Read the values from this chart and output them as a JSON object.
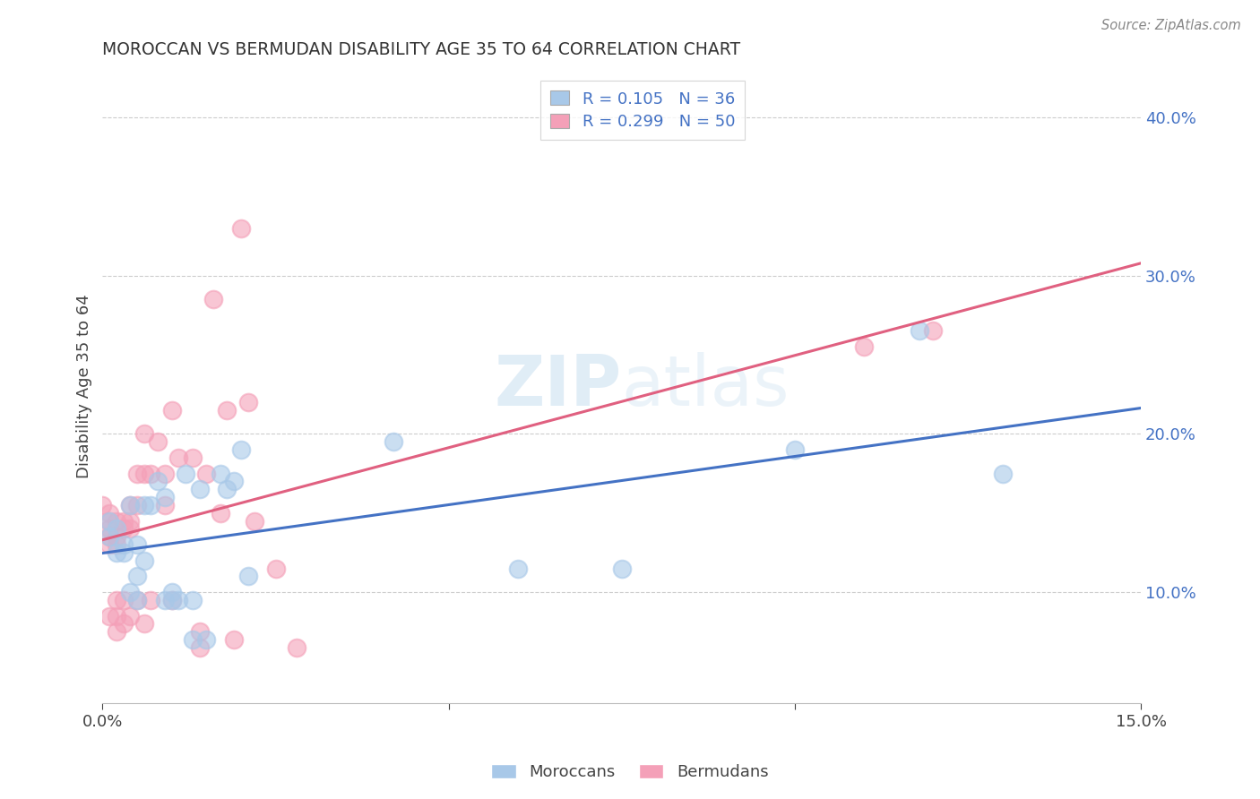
{
  "title": "MOROCCAN VS BERMUDAN DISABILITY AGE 35 TO 64 CORRELATION CHART",
  "source": "Source: ZipAtlas.com",
  "ylabel": "Disability Age 35 to 64",
  "xlim": [
    0.0,
    0.15
  ],
  "ylim": [
    0.03,
    0.43
  ],
  "moroccan_R": 0.105,
  "moroccan_N": 36,
  "bermudan_R": 0.299,
  "bermudan_N": 50,
  "moroccan_color": "#a8c8e8",
  "bermudan_color": "#f4a0b8",
  "moroccan_line_color": "#4472c4",
  "bermudan_line_color": "#e06080",
  "watermark": "ZIPatlas",
  "moroccan_x": [
    0.001,
    0.001,
    0.002,
    0.002,
    0.003,
    0.003,
    0.004,
    0.004,
    0.005,
    0.005,
    0.005,
    0.006,
    0.006,
    0.007,
    0.008,
    0.009,
    0.009,
    0.01,
    0.01,
    0.011,
    0.012,
    0.013,
    0.013,
    0.014,
    0.015,
    0.017,
    0.018,
    0.019,
    0.02,
    0.021,
    0.042,
    0.06,
    0.075,
    0.1,
    0.118,
    0.13
  ],
  "moroccan_y": [
    0.145,
    0.135,
    0.125,
    0.14,
    0.13,
    0.125,
    0.155,
    0.1,
    0.11,
    0.13,
    0.095,
    0.12,
    0.155,
    0.155,
    0.17,
    0.16,
    0.095,
    0.095,
    0.1,
    0.095,
    0.175,
    0.095,
    0.07,
    0.165,
    0.07,
    0.175,
    0.165,
    0.17,
    0.19,
    0.11,
    0.195,
    0.115,
    0.115,
    0.19,
    0.265,
    0.175
  ],
  "bermudan_x": [
    0.0,
    0.001,
    0.001,
    0.001,
    0.001,
    0.001,
    0.001,
    0.002,
    0.002,
    0.002,
    0.002,
    0.002,
    0.002,
    0.003,
    0.003,
    0.003,
    0.003,
    0.004,
    0.004,
    0.004,
    0.004,
    0.005,
    0.005,
    0.005,
    0.006,
    0.006,
    0.006,
    0.007,
    0.007,
    0.008,
    0.009,
    0.009,
    0.01,
    0.01,
    0.011,
    0.013,
    0.014,
    0.014,
    0.015,
    0.016,
    0.017,
    0.018,
    0.019,
    0.02,
    0.021,
    0.022,
    0.025,
    0.028,
    0.11,
    0.12
  ],
  "bermudan_y": [
    0.155,
    0.15,
    0.145,
    0.14,
    0.135,
    0.13,
    0.085,
    0.145,
    0.135,
    0.13,
    0.095,
    0.085,
    0.075,
    0.145,
    0.14,
    0.095,
    0.08,
    0.155,
    0.145,
    0.14,
    0.085,
    0.175,
    0.155,
    0.095,
    0.2,
    0.175,
    0.08,
    0.175,
    0.095,
    0.195,
    0.175,
    0.155,
    0.215,
    0.095,
    0.185,
    0.185,
    0.075,
    0.065,
    0.175,
    0.285,
    0.15,
    0.215,
    0.07,
    0.33,
    0.22,
    0.145,
    0.115,
    0.065,
    0.255,
    0.265
  ]
}
